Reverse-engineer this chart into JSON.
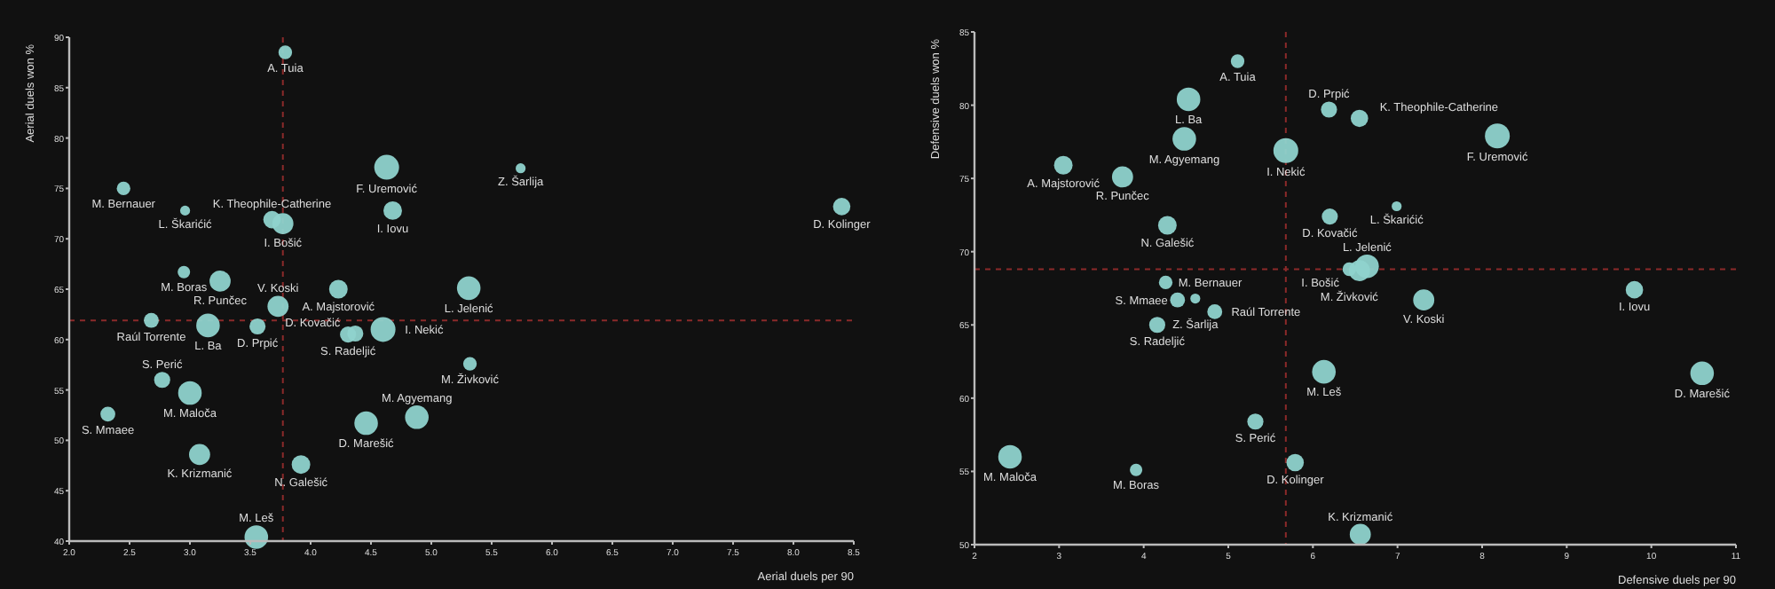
{
  "chart_data": [
    {
      "type": "bubble",
      "xlabel": "Aerial duels per 90",
      "ylabel": "Aerial duels won %",
      "xlim": [
        2,
        8.5
      ],
      "ylim": [
        40,
        90
      ],
      "xticks": [
        {
          "value": 2,
          "label": "2.0"
        },
        {
          "value": 2.5,
          "label": "2.5"
        },
        {
          "value": 3,
          "label": "3.0"
        },
        {
          "value": 3.5,
          "label": "3.5"
        },
        {
          "value": 4,
          "label": "4.0"
        },
        {
          "value": 4.5,
          "label": "4.5"
        },
        {
          "value": 5,
          "label": "5.0"
        },
        {
          "value": 5.5,
          "label": "5.5"
        },
        {
          "value": 6,
          "label": "6.0"
        },
        {
          "value": 6.5,
          "label": "6.5"
        },
        {
          "value": 7,
          "label": "7.0"
        },
        {
          "value": 7.5,
          "label": "7.5"
        },
        {
          "value": 8,
          "label": "8.0"
        },
        {
          "value": 8.5,
          "label": "8.5"
        }
      ],
      "yticks": [
        40,
        45,
        50,
        55,
        60,
        65,
        70,
        75,
        80,
        85,
        90
      ],
      "ref_lines": [
        {
          "axis": "x",
          "value": 3.77,
          "color": "#8b2a2a",
          "line_style": "dashed"
        },
        {
          "axis": "y",
          "value": 61.9,
          "color": "#8b2a2a",
          "line_style": "dashed"
        }
      ],
      "series": [
        {
          "color": "#8fd3cd",
          "x": [
            3.79,
            4.63,
            5.74,
            2.45,
            2.96,
            8.4,
            4.68,
            3.68,
            3.77,
            2.95,
            3.25,
            4.23,
            5.31,
            3.73,
            2.68,
            3.15,
            3.56,
            4.31,
            4.37,
            4.6,
            5.32,
            2.77,
            3.0,
            2.32,
            4.46,
            4.88,
            3.08,
            3.92,
            3.55
          ],
          "values": [
            88.5,
            77.1,
            77.0,
            75.0,
            72.8,
            73.2,
            72.8,
            71.9,
            71.5,
            66.7,
            65.8,
            65.0,
            65.1,
            63.3,
            61.9,
            61.4,
            61.3,
            60.5,
            60.6,
            61.0,
            57.6,
            56.0,
            54.7,
            52.6,
            51.7,
            52.3,
            48.6,
            47.6,
            40.4
          ],
          "sizes": [
            0.3,
            1,
            0.16,
            0.3,
            0.16,
            0.49,
            0.56,
            0.49,
            0.72,
            0.25,
            0.72,
            0.56,
            0.9,
            0.72,
            0.36,
            0.9,
            0.42,
            0.42,
            0.42,
            1,
            0.3,
            0.42,
            0.9,
            0.36,
            0.9,
            0.9,
            0.72,
            0.56,
            0.9
          ]
        }
      ],
      "annotations": [
        {
          "text": "A. Tuia",
          "x": 3.79,
          "y": 88.5
        },
        {
          "text": "F. Uremović",
          "x": 4.63,
          "y": 77.1
        },
        {
          "text": "Z. Šarlija",
          "x": 5.74,
          "y": 77.0
        },
        {
          "text": "M. Bernauer",
          "x": 2.45,
          "y": 75.0
        },
        {
          "text": "L. Škarićić",
          "x": 2.96,
          "y": 72.8
        },
        {
          "text": "D. Kolinger",
          "x": 8.4,
          "y": 73.2
        },
        {
          "text": "I. Iovu",
          "x": 4.68,
          "y": 72.8
        },
        {
          "text": "K. Theophile-Catherine",
          "x": 3.68,
          "y": 71.9
        },
        {
          "text": "I. Bošić",
          "x": 3.77,
          "y": 71.5
        },
        {
          "text": "M. Boras",
          "x": 2.95,
          "y": 66.7
        },
        {
          "text": "R. Punčec",
          "x": 3.25,
          "y": 65.8
        },
        {
          "text": "A. Majstorović",
          "x": 4.23,
          "y": 65.0
        },
        {
          "text": "L. Jelenić",
          "x": 5.31,
          "y": 65.1
        },
        {
          "text": "V. Koski",
          "x": 3.73,
          "y": 63.3
        },
        {
          "text": "Raúl Torrente",
          "x": 2.68,
          "y": 61.9
        },
        {
          "text": "L. Ba",
          "x": 3.15,
          "y": 61.4
        },
        {
          "text": "D. Prpić",
          "x": 3.56,
          "y": 61.3
        },
        {
          "text": "S. Radeljić",
          "x": 4.31,
          "y": 60.5
        },
        {
          "text": "D. Kovačić",
          "x": 4.37,
          "y": 60.6
        },
        {
          "text": "I. Nekić",
          "x": 4.6,
          "y": 61.0
        },
        {
          "text": "M. Živković",
          "x": 5.32,
          "y": 57.6
        },
        {
          "text": "S. Perić",
          "x": 2.77,
          "y": 56.0
        },
        {
          "text": "M. Maloča",
          "x": 3.0,
          "y": 54.7
        },
        {
          "text": "S. Mmaee",
          "x": 2.32,
          "y": 52.6
        },
        {
          "text": "D. Marešić",
          "x": 4.46,
          "y": 51.7
        },
        {
          "text": "M. Agyemang",
          "x": 4.88,
          "y": 52.3
        },
        {
          "text": "K. Krizmanić",
          "x": 3.08,
          "y": 48.6
        },
        {
          "text": "N. Galešić",
          "x": 3.92,
          "y": 47.6
        },
        {
          "text": "M. Leš",
          "x": 3.55,
          "y": 40.4
        }
      ]
    },
    {
      "type": "bubble",
      "xlabel": "Defensive duels per 90",
      "ylabel": "Defensive duels won %",
      "xlim": [
        2,
        11
      ],
      "ylim": [
        50,
        85
      ],
      "xticks": [
        2,
        3,
        4,
        5,
        6,
        7,
        8,
        9,
        10,
        11
      ],
      "yticks": [
        50,
        55,
        60,
        65,
        70,
        75,
        80,
        85
      ],
      "ref_lines": [
        {
          "axis": "x",
          "value": 5.68,
          "color": "#8b2a2a",
          "line_style": "dashed"
        },
        {
          "axis": "y",
          "value": 68.8,
          "color": "#8b2a2a",
          "line_style": "dashed"
        }
      ],
      "series": [
        {
          "color": "#8fd3cd",
          "x": [
            5.11,
            4.53,
            6.19,
            6.55,
            8.18,
            4.48,
            5.68,
            3.05,
            3.75,
            6.2,
            6.99,
            4.28,
            6.43,
            6.64,
            6.55,
            4.26,
            4.4,
            4.61,
            4.84,
            4.16,
            7.31,
            9.8,
            6.13,
            10.6,
            5.32,
            2.42,
            3.91,
            5.79,
            6.56
          ],
          "values": [
            83.0,
            80.4,
            79.7,
            79.1,
            77.9,
            77.7,
            76.9,
            75.9,
            75.1,
            72.4,
            73.1,
            71.8,
            68.8,
            69.0,
            68.7,
            67.9,
            66.7,
            66.8,
            65.9,
            65.0,
            66.7,
            67.4,
            61.8,
            61.7,
            58.4,
            56.0,
            55.1,
            55.6,
            50.7
          ],
          "sizes": [
            0.3,
            0.9,
            0.42,
            0.49,
            1,
            0.9,
            1,
            0.56,
            0.72,
            0.42,
            0.16,
            0.56,
            0.3,
            0.9,
            0.72,
            0.3,
            0.36,
            0.16,
            0.36,
            0.42,
            0.72,
            0.49,
            0.9,
            0.9,
            0.42,
            0.9,
            0.25,
            0.49,
            0.72
          ]
        }
      ],
      "annotations": [
        {
          "text": "A. Tuia",
          "x": 5.11,
          "y": 83.0
        },
        {
          "text": "L. Ba",
          "x": 4.53,
          "y": 80.4
        },
        {
          "text": "D. Prpić",
          "x": 6.19,
          "y": 79.7
        },
        {
          "text": "K. Theophile-Catherine",
          "x": 6.55,
          "y": 79.1
        },
        {
          "text": "F. Uremović",
          "x": 8.18,
          "y": 77.9
        },
        {
          "text": "M. Agyemang",
          "x": 4.48,
          "y": 77.7
        },
        {
          "text": "I. Nekić",
          "x": 5.68,
          "y": 76.9
        },
        {
          "text": "A. Majstorović",
          "x": 3.05,
          "y": 75.9
        },
        {
          "text": "R. Punčec",
          "x": 3.75,
          "y": 75.1
        },
        {
          "text": "D. Kovačić",
          "x": 6.2,
          "y": 72.4
        },
        {
          "text": "L. Škarićić",
          "x": 6.99,
          "y": 73.1
        },
        {
          "text": "N. Galešić",
          "x": 4.28,
          "y": 71.8
        },
        {
          "text": "M. Živković",
          "x": 6.43,
          "y": 68.8
        },
        {
          "text": "L. Jelenić",
          "x": 6.64,
          "y": 69.0
        },
        {
          "text": "I. Bošić",
          "x": 6.55,
          "y": 68.7
        },
        {
          "text": "M. Bernauer",
          "x": 4.26,
          "y": 67.9
        },
        {
          "text": "S. Mmaee",
          "x": 4.4,
          "y": 66.7
        },
        {
          "text": "Z. Šarlija",
          "x": 4.61,
          "y": 66.8
        },
        {
          "text": "Raúl Torrente",
          "x": 4.84,
          "y": 65.9
        },
        {
          "text": "S. Radeljić",
          "x": 4.16,
          "y": 65.0
        },
        {
          "text": "V. Koski",
          "x": 7.31,
          "y": 66.7
        },
        {
          "text": "I. Iovu",
          "x": 9.8,
          "y": 67.4
        },
        {
          "text": "M. Leš",
          "x": 6.13,
          "y": 61.8
        },
        {
          "text": "D. Marešić",
          "x": 10.6,
          "y": 61.7
        },
        {
          "text": "S. Perić",
          "x": 5.32,
          "y": 58.4
        },
        {
          "text": "M. Maloča",
          "x": 2.42,
          "y": 56.0
        },
        {
          "text": "M. Boras",
          "x": 3.91,
          "y": 55.1
        },
        {
          "text": "D. Kolinger",
          "x": 5.79,
          "y": 55.6
        },
        {
          "text": "K. Krizmanić",
          "x": 6.56,
          "y": 50.7
        }
      ]
    }
  ]
}
